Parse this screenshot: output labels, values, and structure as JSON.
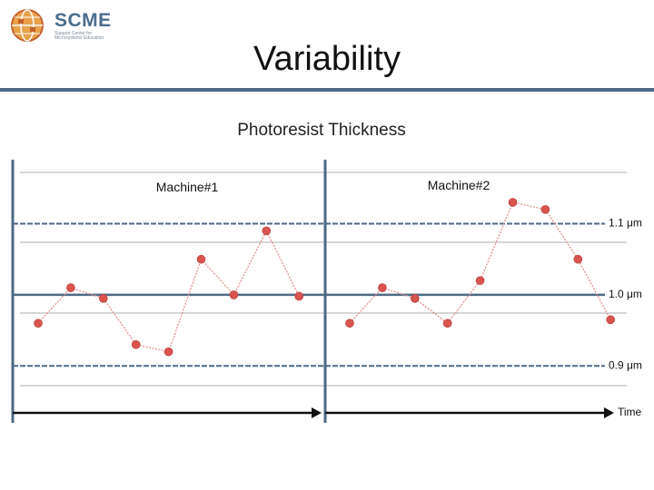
{
  "logo": {
    "name": "SCME",
    "subtitle": "Support Center for Microsystems Education"
  },
  "slide": {
    "title": "Variability"
  },
  "chart_data": {
    "type": "line",
    "title": "Photoresist Thickness",
    "xlabel": "Time",
    "ylabel": "",
    "y_unit": "μm",
    "ylim": [
      0.82,
      1.19
    ],
    "reference_lines": [
      {
        "label": "1.1 μm",
        "value": 1.1,
        "style": "dashed"
      },
      {
        "label": "1.0 μm",
        "value": 1.0,
        "style": "solid"
      },
      {
        "label": "0.9 μm",
        "value": 0.9,
        "style": "dashed"
      }
    ],
    "series": [
      {
        "name": "Machine#1",
        "x": [
          1,
          2,
          3,
          4,
          5,
          6,
          7,
          8,
          9
        ],
        "values": [
          0.96,
          1.01,
          0.995,
          0.93,
          0.92,
          1.05,
          1.0,
          1.09,
          0.998
        ]
      },
      {
        "name": "Machine#2",
        "x": [
          1,
          2,
          3,
          4,
          5,
          6,
          7,
          8,
          9
        ],
        "values": [
          0.96,
          1.01,
          0.995,
          0.96,
          1.02,
          1.13,
          1.12,
          1.05,
          0.965
        ]
      }
    ],
    "grid": true,
    "line_color": "#e08a84",
    "marker_color": "#d9534f",
    "axis_color": "#4d6a84"
  }
}
